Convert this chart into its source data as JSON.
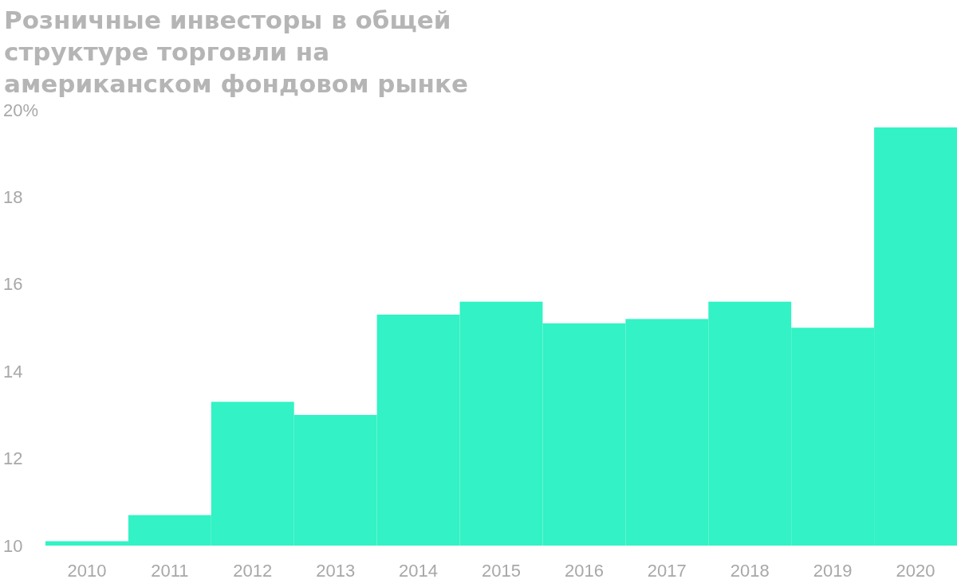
{
  "chart_data": {
    "type": "bar",
    "title": "Розничные инвесторы в общей структуре торговли на американском фондовом рынке",
    "categories": [
      "2010",
      "2011",
      "2012",
      "2013",
      "2014",
      "2015",
      "2016",
      "2017",
      "2018",
      "2019",
      "2020"
    ],
    "values": [
      10.1,
      10.7,
      13.3,
      13.0,
      15.3,
      15.6,
      15.1,
      15.2,
      15.6,
      15.0,
      19.6
    ],
    "color": "#33f2c5",
    "ylim": [
      10,
      20
    ],
    "yticks": [
      10,
      12,
      14,
      16,
      18,
      {
        "value": 20,
        "label": "20%"
      }
    ],
    "grid": false
  }
}
